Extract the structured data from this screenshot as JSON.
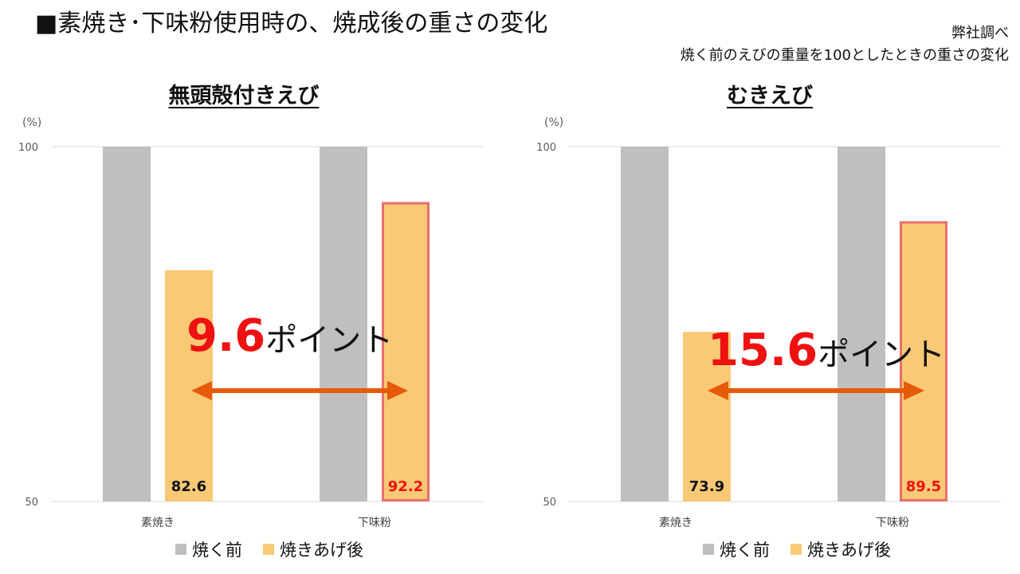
{
  "header": {
    "title": "■素焼き･下味粉使用時の、焼成後の重さの変化",
    "note_line1": "弊社調べ",
    "note_line2": "焼く前のえびの重量を100としたときの重さの変化"
  },
  "colors": {
    "before": "#bfbfbf",
    "after": "#fac975",
    "highlight_border": "#e8706a",
    "highlight_text": "#ee1111",
    "arrow": "#e65a0a",
    "grid": "#d9d9d9"
  },
  "chart_data": [
    {
      "type": "bar",
      "title": "無頭殻付きえび",
      "unit_label": "(%)",
      "ylim": [
        50,
        100
      ],
      "yticks": [
        50,
        100
      ],
      "categories": [
        "素焼き",
        "下味粉"
      ],
      "series": [
        {
          "name": "焼く前",
          "values": [
            100,
            100
          ]
        },
        {
          "name": "焼きあげ後",
          "values": [
            82.6,
            92.2
          ]
        }
      ],
      "data_labels": [
        "82.6",
        "92.2"
      ],
      "annotation": {
        "value": "9.6",
        "suffix": "ポイント"
      },
      "legend": "bottom"
    },
    {
      "type": "bar",
      "title": "むきえび",
      "unit_label": "(%)",
      "ylim": [
        50,
        100
      ],
      "yticks": [
        50,
        100
      ],
      "categories": [
        "素焼き",
        "下味粉"
      ],
      "series": [
        {
          "name": "焼く前",
          "values": [
            100,
            100
          ]
        },
        {
          "name": "焼きあげ後",
          "values": [
            73.9,
            89.5
          ]
        }
      ],
      "data_labels": [
        "73.9",
        "89.5"
      ],
      "annotation": {
        "value": "15.6",
        "suffix": "ポイント"
      },
      "legend": "bottom"
    }
  ]
}
